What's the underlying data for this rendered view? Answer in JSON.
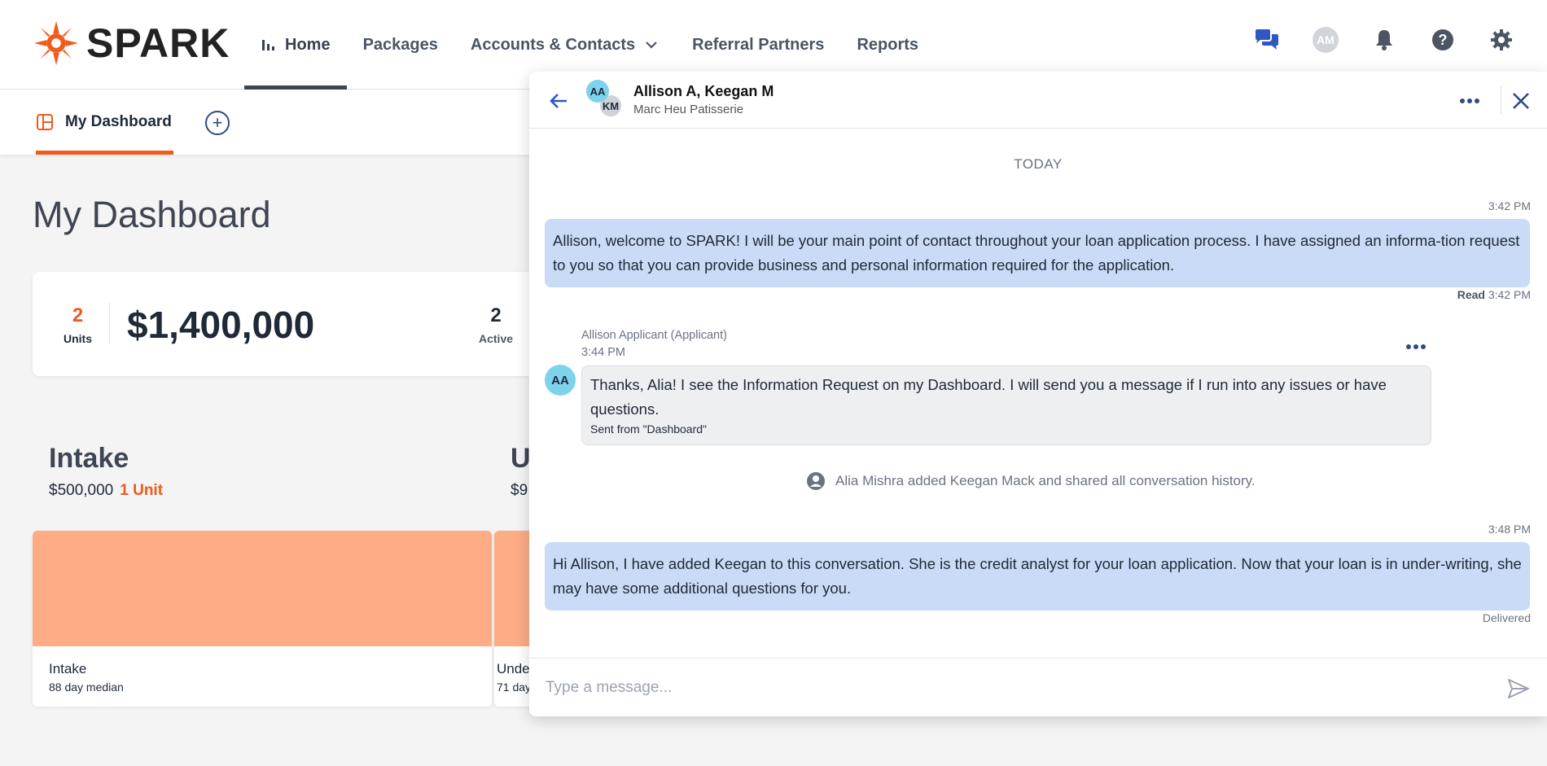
{
  "brand": {
    "name": "SPARK",
    "accent": "#f05a1a"
  },
  "nav": {
    "items": [
      {
        "label": "Home",
        "icon": "bar-chart-icon",
        "active": true
      },
      {
        "label": "Packages"
      },
      {
        "label": "Accounts & Contacts",
        "icon": "chevron-down-icon"
      },
      {
        "label": "Referral Partners"
      },
      {
        "label": "Reports"
      }
    ],
    "user_initials": "AM"
  },
  "subnav": {
    "tab_label": "My Dashboard"
  },
  "dashboard": {
    "title": "My Dashboard",
    "summary": {
      "units": "2",
      "units_label": "Units",
      "amount": "$1,400,000",
      "active": "2",
      "active_label": "Active"
    },
    "stages": [
      {
        "title": "Intake",
        "amount": "$500,000",
        "units": "1 Unit",
        "name": "Intake",
        "median": "88 day median"
      },
      {
        "title": "U",
        "amount": "$9",
        "name": "Unde",
        "median": "71 day"
      }
    ]
  },
  "chat": {
    "participants": "Allison A, Keegan M",
    "org": "Marc Heu Patisserie",
    "avatar_1": "AA",
    "avatar_2": "KM",
    "day": "TODAY",
    "messages": [
      {
        "time": "3:42 PM",
        "text": "Allison, welcome to SPARK! I will be your main point of contact throughout your loan application process. I have assigned an informa-tion request to you so that you can provide business and personal information required for the application.",
        "status_label": "Read",
        "status_time": "3:42 PM"
      },
      {
        "sender": "Allison Applicant (Applicant)",
        "time": "3:44 PM",
        "avatar": "AA",
        "text": "Thanks, Alia! I see the Information Request on my Dashboard. I will send you a message if I run into any issues or have questions.",
        "sent_from": "Sent from \"Dashboard\""
      },
      {
        "system": "Alia Mishra added Keegan Mack and shared all conversation history."
      },
      {
        "time": "3:48 PM",
        "text": "Hi Allison, I have added Keegan to this conversation. She is the credit analyst for your loan application. Now that your loan is in under-writing, she may have some additional questions for you.",
        "status": "Delivered"
      }
    ],
    "composer_placeholder": "Type a message..."
  }
}
